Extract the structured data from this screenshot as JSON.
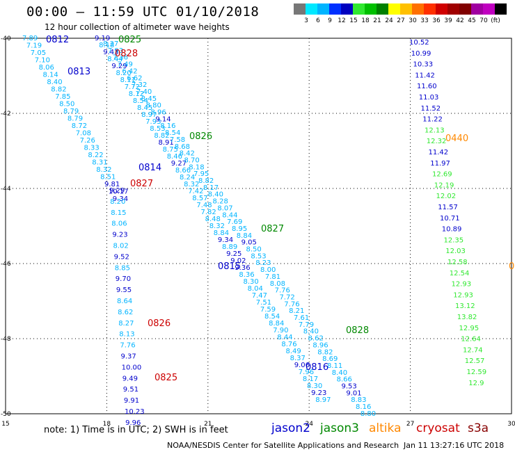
{
  "header": {
    "title": "00:00 – 11:59 UTC 01/10/2018",
    "subtitle": "12 hour collection of altimeter wave heights"
  },
  "color_scale": {
    "colors": [
      "#777777",
      "#00e8ff",
      "#00b4ff",
      "#0030ff",
      "#0000c0",
      "#30e830",
      "#00c000",
      "#008000",
      "#ffff00",
      "#ffc000",
      "#ff7000",
      "#ff3000",
      "#d00000",
      "#a00000",
      "#800000",
      "#a000a0",
      "#c000c0",
      "#000000"
    ],
    "labels": [
      "3",
      "6",
      "9",
      "12",
      "15",
      "18",
      "21",
      "24",
      "27",
      "30",
      "33",
      "36",
      "39",
      "42",
      "45",
      "70",
      "(ft)"
    ]
  },
  "axes": {
    "x_ticks": [
      "15",
      "18",
      "21",
      "24",
      "27",
      "30"
    ],
    "y_ticks": [
      "-40",
      "-42",
      "-44",
      "-46",
      "-48",
      "-50"
    ]
  },
  "legend": {
    "note": "note:  1) Time is in UTC;  2) SWH is in feet",
    "satellites": [
      {
        "name": "jason2",
        "color": "#0000cc"
      },
      {
        "name": "jason3",
        "color": "#008800"
      },
      {
        "name": "altika",
        "color": "#ff8800"
      },
      {
        "name": "cryosat",
        "color": "#cc0000"
      },
      {
        "name": "s3a",
        "color": "#880000"
      }
    ]
  },
  "footer": {
    "credit": "NOAA/NESDIS Center for Satellite Applications and Research",
    "timestamp": "Jan 11 13:27:16 UTC 2018"
  },
  "map_data": {
    "tracks": [
      {
        "id": "t1",
        "time": "0812",
        "time_color": "#0000cc",
        "values": [
          "7.89",
          "7.19",
          "7.05",
          "7.10",
          "8.06",
          "8.14",
          "8.40",
          "8.82",
          "7.85",
          "8.50",
          "8.79",
          "8.79",
          "8.72",
          "7.08",
          "7.26",
          "8.33",
          "8.22",
          "8.31",
          "8.32",
          "8.51",
          "9.81",
          "10.17",
          "9.34"
        ],
        "value_colors": [
          "#00b4ff",
          "#00b4ff",
          "#00b4ff",
          "#00b4ff",
          "#00b4ff",
          "#00b4ff",
          "#00b4ff",
          "#00b4ff",
          "#00b4ff",
          "#00b4ff",
          "#00b4ff",
          "#00b4ff",
          "#00b4ff",
          "#00b4ff",
          "#00b4ff",
          "#00b4ff",
          "#00b4ff",
          "#00b4ff",
          "#00b4ff",
          "#00b4ff",
          "#0000cc",
          "#0000cc",
          "#0000cc"
        ]
      },
      {
        "id": "t2",
        "time": "0825",
        "time_color": "#008800",
        "values": [
          "9.19",
          "8.18",
          "9.43",
          "8.44",
          "9.29",
          "8.20",
          "8.11",
          "7.72",
          "8.12",
          "8.54",
          "8.45",
          "8.97",
          "7.93",
          "8.53",
          "8.82",
          "8.91",
          "8.75",
          "8.46",
          "9.27",
          "8.66",
          "8.24",
          "8.32",
          "7.42",
          "8.57",
          "7.48",
          "7.82",
          "8.48",
          "8.32",
          "8.84",
          "9.34",
          "8.89",
          "9.25",
          "9.02",
          "9.36",
          "8.36",
          "8.30",
          "8.04",
          "7.47",
          "7.51",
          "7.59",
          "8.54",
          "8.84",
          "7.90",
          "8.44",
          "8.76",
          "8.49",
          "8.37",
          "9.06",
          "7.96",
          "8.17",
          "8.30",
          "9.23",
          "8.97"
        ],
        "value_colors": [
          "#0000cc",
          "#00b4ff",
          "#0000cc",
          "#00b4ff",
          "#0000cc",
          "#00b4ff",
          "#00b4ff",
          "#00b4ff",
          "#00b4ff",
          "#00b4ff",
          "#00b4ff",
          "#00b4ff",
          "#00b4ff",
          "#00b4ff",
          "#00b4ff",
          "#0000cc",
          "#00b4ff",
          "#00b4ff",
          "#0000cc",
          "#00b4ff",
          "#00b4ff",
          "#00b4ff",
          "#00b4ff",
          "#00b4ff",
          "#00b4ff",
          "#00b4ff",
          "#00b4ff",
          "#00b4ff",
          "#00b4ff",
          "#0000cc",
          "#00b4ff",
          "#0000cc",
          "#0000cc",
          "#0000cc",
          "#00b4ff",
          "#00b4ff",
          "#00b4ff",
          "#00b4ff",
          "#00b4ff",
          "#00b4ff",
          "#00b4ff",
          "#00b4ff",
          "#00b4ff",
          "#00b4ff",
          "#00b4ff",
          "#00b4ff",
          "#00b4ff",
          "#0000cc",
          "#00b4ff",
          "#00b4ff",
          "#00b4ff",
          "#0000cc",
          "#00b4ff"
        ]
      },
      {
        "id": "t3",
        "time": "0826",
        "time_color": "#008800",
        "values": [
          "8.37",
          "7.93",
          "7.36",
          "7.49",
          "6.42",
          "6.62",
          "7.32",
          "7.40",
          "8.45",
          "8.80",
          "8.96",
          "9.14",
          "8.16",
          "8.54",
          "7.58",
          "8.68",
          "8.42",
          "8.70",
          "8.18",
          "7.95",
          "8.82",
          "8.17",
          "8.40",
          "8.28",
          "8.07",
          "8.44",
          "7.69",
          "8.95",
          "8.84",
          "9.05",
          "8.50",
          "8.53",
          "8.23",
          "8.00",
          "7.81",
          "8.08",
          "7.76",
          "7.72",
          "7.76",
          "8.21",
          "7.61",
          "7.79",
          "8.40",
          "8.62",
          "8.96",
          "8.82",
          "8.69",
          "8.11",
          "8.40",
          "8.66",
          "9.53",
          "9.01",
          "8.83",
          "8.16",
          "8.80"
        ],
        "value_colors": [
          "#00b4ff",
          "#00b4ff",
          "#00b4ff",
          "#00b4ff",
          "#00b4ff",
          "#00b4ff",
          "#00b4ff",
          "#00b4ff",
          "#00b4ff",
          "#00b4ff",
          "#00b4ff",
          "#0000cc",
          "#00b4ff",
          "#00b4ff",
          "#00b4ff",
          "#00b4ff",
          "#00b4ff",
          "#00b4ff",
          "#00b4ff",
          "#00b4ff",
          "#00b4ff",
          "#00b4ff",
          "#00b4ff",
          "#00b4ff",
          "#00b4ff",
          "#00b4ff",
          "#00b4ff",
          "#00b4ff",
          "#00b4ff",
          "#0000cc",
          "#00b4ff",
          "#00b4ff",
          "#00b4ff",
          "#00b4ff",
          "#00b4ff",
          "#00b4ff",
          "#00b4ff",
          "#00b4ff",
          "#00b4ff",
          "#00b4ff",
          "#00b4ff",
          "#00b4ff",
          "#00b4ff",
          "#00b4ff",
          "#00b4ff",
          "#00b4ff",
          "#00b4ff",
          "#00b4ff",
          "#00b4ff",
          "#00b4ff",
          "#0000cc",
          "#0000cc",
          "#00b4ff",
          "#00b4ff",
          "#00b4ff"
        ]
      },
      {
        "id": "t4",
        "time": "0826",
        "time_color": "#cc0000",
        "values": [
          "9.29",
          "8.20",
          "8.15",
          "8.06",
          "9.23",
          "8.02",
          "9.52",
          "8.85",
          "9.70",
          "9.55",
          "8.64",
          "8.62",
          "8.27",
          "8.13",
          "7.76",
          "9.37",
          "10.00",
          "9.49",
          "9.51",
          "9.91",
          "10.23",
          "9.96"
        ],
        "value_colors": [
          "#0000cc",
          "#00b4ff",
          "#00b4ff",
          "#00b4ff",
          "#0000cc",
          "#00b4ff",
          "#0000cc",
          "#00b4ff",
          "#0000cc",
          "#0000cc",
          "#00b4ff",
          "#00b4ff",
          "#00b4ff",
          "#00b4ff",
          "#00b4ff",
          "#0000cc",
          "#0000cc",
          "#0000cc",
          "#0000cc",
          "#0000cc",
          "#0000cc",
          "#0000cc"
        ]
      },
      {
        "id": "t5",
        "time": "0440",
        "time_color": "#ff8800",
        "values": [
          "10.52",
          "10.99",
          "10.33",
          "11.42",
          "11.60",
          "11.03",
          "11.52",
          "11.22",
          "12.13",
          "12.32",
          "11.42",
          "11.97",
          "12.69",
          "12.19",
          "12.02",
          "11.57",
          "10.71",
          "10.89",
          "12.35",
          "12.03",
          "12.58",
          "12.54",
          "12.93",
          "12.93",
          "13.12",
          "13.82",
          "12.95",
          "12.64",
          "12.74",
          "12.57",
          "12.59",
          "12.9"
        ],
        "value_colors": [
          "#0000cc",
          "#0000cc",
          "#0000cc",
          "#0000cc",
          "#0000cc",
          "#0000cc",
          "#0000cc",
          "#0000cc",
          "#30e830",
          "#30e830",
          "#0000cc",
          "#0000cc",
          "#30e830",
          "#30e830",
          "#30e830",
          "#0000cc",
          "#0000cc",
          "#0000cc",
          "#30e830",
          "#30e830",
          "#30e830",
          "#30e830",
          "#30e830",
          "#30e830",
          "#30e830",
          "#30e830",
          "#30e830",
          "#30e830",
          "#30e830",
          "#30e830",
          "#30e830",
          "#30e830"
        ]
      }
    ],
    "time_labels": [
      {
        "text": "0812",
        "color": "#0000cc"
      },
      {
        "text": "0825",
        "color": "#008800"
      },
      {
        "text": "0828",
        "color": "#cc0000"
      },
      {
        "text": "0813",
        "color": "#0000cc"
      },
      {
        "text": "0826",
        "color": "#008800"
      },
      {
        "text": "0814",
        "color": "#0000cc"
      },
      {
        "text": "0827",
        "color": "#cc0000"
      },
      {
        "text": "0827",
        "color": "#008800"
      },
      {
        "text": "0815",
        "color": "#0000cc"
      },
      {
        "text": "0826",
        "color": "#cc0000"
      },
      {
        "text": "0828",
        "color": "#008800"
      },
      {
        "text": "0816",
        "color": "#0000cc"
      },
      {
        "text": "0825",
        "color": "#cc0000"
      },
      {
        "text": "0440",
        "color": "#ff8800"
      },
      {
        "text": "0",
        "color": "#ff8800"
      }
    ]
  }
}
